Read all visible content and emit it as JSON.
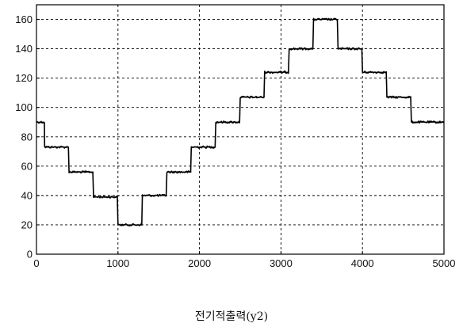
{
  "chart_data": {
    "type": "line",
    "title": "",
    "xlabel": "",
    "ylabel": "",
    "xlim": [
      0,
      5000
    ],
    "ylim": [
      0,
      170
    ],
    "grid": true,
    "x_ticks": [
      0,
      1000,
      2000,
      3000,
      4000,
      5000
    ],
    "y_ticks": [
      0,
      20,
      40,
      60,
      80,
      100,
      120,
      140,
      160
    ],
    "series": [
      {
        "steps": [
          {
            "x_start": 0,
            "x_end": 100,
            "y": 90
          },
          {
            "x_start": 100,
            "x_end": 400,
            "y": 73
          },
          {
            "x_start": 400,
            "x_end": 700,
            "y": 56
          },
          {
            "x_start": 700,
            "x_end": 1000,
            "y": 39
          },
          {
            "x_start": 1000,
            "x_end": 1300,
            "y": 20
          },
          {
            "x_start": 1300,
            "x_end": 1600,
            "y": 40
          },
          {
            "x_start": 1600,
            "x_end": 1900,
            "y": 56
          },
          {
            "x_start": 1900,
            "x_end": 2200,
            "y": 73
          },
          {
            "x_start": 2200,
            "x_end": 2500,
            "y": 90
          },
          {
            "x_start": 2500,
            "x_end": 2800,
            "y": 107
          },
          {
            "x_start": 2800,
            "x_end": 3100,
            "y": 124
          },
          {
            "x_start": 3100,
            "x_end": 3400,
            "y": 140
          },
          {
            "x_start": 3400,
            "x_end": 3700,
            "y": 160
          },
          {
            "x_start": 3700,
            "x_end": 4000,
            "y": 140
          },
          {
            "x_start": 4000,
            "x_end": 4300,
            "y": 124
          },
          {
            "x_start": 4300,
            "x_end": 4600,
            "y": 107
          },
          {
            "x_start": 4600,
            "x_end": 5000,
            "y": 90
          }
        ]
      }
    ]
  },
  "caption": "전기적출력(y2)",
  "colors": {
    "line": "#000000",
    "grid": "#000000",
    "axes": "#000000"
  }
}
